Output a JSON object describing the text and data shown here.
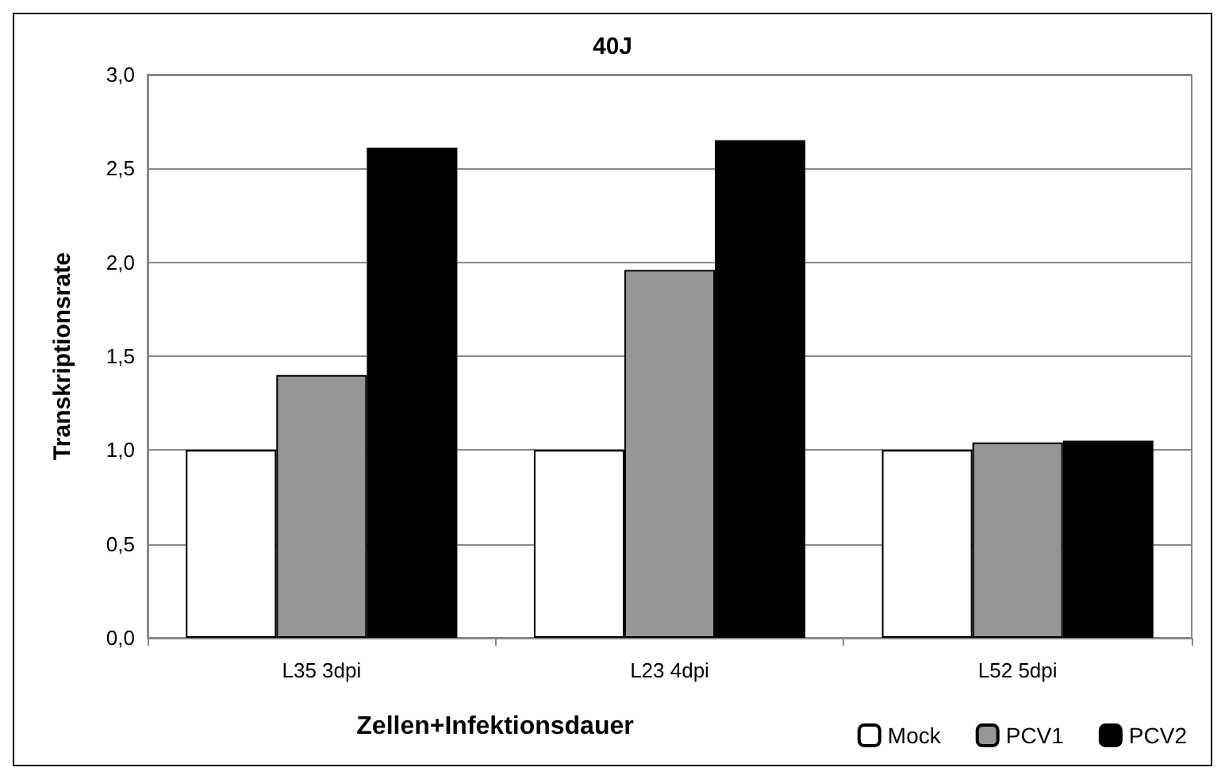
{
  "chart_data": {
    "type": "bar",
    "title": "40J",
    "xlabel": "Zellen+Infektionsdauer",
    "ylabel": "Transkriptionsrate",
    "categories": [
      "L35 3dpi",
      "L23 4dpi",
      "L52 5dpi"
    ],
    "series": [
      {
        "name": "Mock",
        "color": "#ffffff",
        "values": [
          1.0,
          1.0,
          1.0
        ]
      },
      {
        "name": "PCV1",
        "color": "#969696",
        "values": [
          1.4,
          1.96,
          1.04
        ]
      },
      {
        "name": "PCV2",
        "color": "#000000",
        "values": [
          2.61,
          2.65,
          1.05
        ]
      }
    ],
    "ylim": [
      0,
      3
    ],
    "yticks": [
      {
        "value": 0,
        "label": "0,0"
      },
      {
        "value": 0.5,
        "label": "0,5"
      },
      {
        "value": 1,
        "label": "1,0"
      },
      {
        "value": 1.5,
        "label": "1,5"
      },
      {
        "value": 2,
        "label": "2,0"
      },
      {
        "value": 2.5,
        "label": "2,5"
      },
      {
        "value": 3,
        "label": "3,0"
      }
    ],
    "grid": "y",
    "legend": "bottom right"
  }
}
